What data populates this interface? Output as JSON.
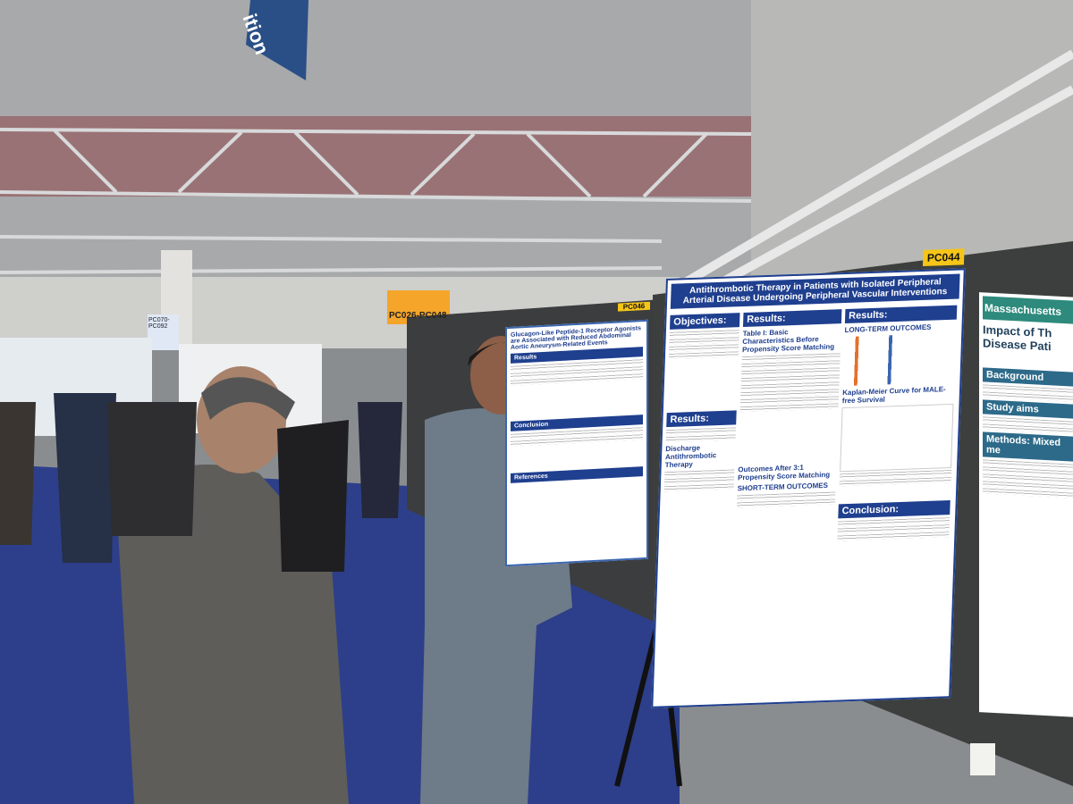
{
  "signs": {
    "banner": "ition",
    "aisle_a": "PC026-PC048",
    "aisle_b": "PC070-PC092"
  },
  "poster_center": {
    "code": "PC046",
    "title": "Glucagon-Like Peptide-1 Receptor Agonists are Associated with Reduced Abdominal Aortic Aneurysm-Related Events",
    "sections": [
      "Results",
      "Conclusion",
      "References"
    ]
  },
  "poster_main": {
    "code": "PC044",
    "title": "Antithrombotic Therapy in Patients with Isolated Peripheral Arterial Disease Undergoing Peripheral Vascular Interventions",
    "sections": [
      "Objectives:",
      "Results:",
      "Results:",
      "Conclusion:"
    ],
    "subheads": [
      "Table I: Basic Characteristics Before Propensity Score Matching",
      "LONG-TERM OUTCOMES",
      "Kaplan-Meier Curve for MALE-free Survival",
      "Outcomes After 3:1 Propensity Score Matching",
      "SHORT-TERM OUTCOMES",
      "Discharge Antithrombotic Therapy"
    ]
  },
  "poster_right": {
    "institution": "Massachusetts",
    "title": "Impact of Th",
    "subtitle": "Disease Pati",
    "sections": [
      "Background",
      "Study aims",
      "Methods: Mixed me"
    ]
  }
}
